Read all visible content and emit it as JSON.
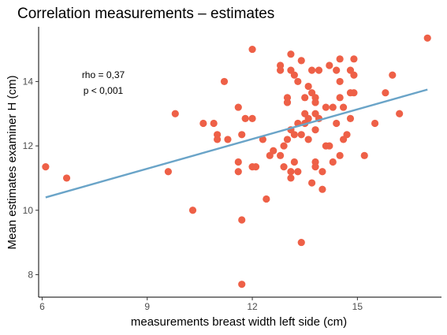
{
  "chart_data": {
    "type": "scatter",
    "title": "Correlation measurements – estimates",
    "xlabel": "measurements breast width left side (cm)",
    "ylabel": "Mean estimates examiner H (cm)",
    "xlim": [
      5.9,
      17.4
    ],
    "ylim": [
      7.3,
      15.7
    ],
    "xticks": [
      6,
      9,
      12,
      15
    ],
    "yticks": [
      8,
      10,
      12,
      14
    ],
    "grid": false,
    "point_color": "#ee6047",
    "line_color": "#6aa4c8",
    "annotations": [
      "rho = 0,37",
      "p < 0,001"
    ],
    "trend_line": {
      "x": [
        6.1,
        17.0
      ],
      "y": [
        10.4,
        13.75
      ]
    },
    "points": [
      {
        "x": 6.1,
        "y": 11.35
      },
      {
        "x": 6.7,
        "y": 11.0
      },
      {
        "x": 9.6,
        "y": 11.2
      },
      {
        "x": 9.8,
        "y": 13.0
      },
      {
        "x": 10.3,
        "y": 10.0
      },
      {
        "x": 10.6,
        "y": 12.7
      },
      {
        "x": 10.9,
        "y": 12.7
      },
      {
        "x": 11.0,
        "y": 12.35
      },
      {
        "x": 11.0,
        "y": 12.2
      },
      {
        "x": 11.2,
        "y": 14.0
      },
      {
        "x": 11.3,
        "y": 12.2
      },
      {
        "x": 11.6,
        "y": 13.2
      },
      {
        "x": 11.6,
        "y": 11.5
      },
      {
        "x": 11.6,
        "y": 11.2
      },
      {
        "x": 11.7,
        "y": 12.35
      },
      {
        "x": 11.7,
        "y": 9.7
      },
      {
        "x": 11.7,
        "y": 7.7
      },
      {
        "x": 11.8,
        "y": 12.85
      },
      {
        "x": 12.0,
        "y": 15.0
      },
      {
        "x": 12.0,
        "y": 12.85
      },
      {
        "x": 12.0,
        "y": 11.35
      },
      {
        "x": 12.1,
        "y": 11.35
      },
      {
        "x": 12.3,
        "y": 12.2
      },
      {
        "x": 12.4,
        "y": 10.35
      },
      {
        "x": 12.5,
        "y": 11.7
      },
      {
        "x": 12.6,
        "y": 11.85
      },
      {
        "x": 12.8,
        "y": 14.5
      },
      {
        "x": 12.8,
        "y": 14.35
      },
      {
        "x": 12.8,
        "y": 11.7
      },
      {
        "x": 12.9,
        "y": 12.0
      },
      {
        "x": 12.9,
        "y": 11.35
      },
      {
        "x": 13.0,
        "y": 13.5
      },
      {
        "x": 13.0,
        "y": 13.35
      },
      {
        "x": 13.0,
        "y": 12.2
      },
      {
        "x": 13.1,
        "y": 14.85
      },
      {
        "x": 13.1,
        "y": 14.35
      },
      {
        "x": 13.1,
        "y": 12.5
      },
      {
        "x": 13.1,
        "y": 11.2
      },
      {
        "x": 13.1,
        "y": 11.0
      },
      {
        "x": 13.2,
        "y": 14.2
      },
      {
        "x": 13.2,
        "y": 12.35
      },
      {
        "x": 13.2,
        "y": 11.5
      },
      {
        "x": 13.3,
        "y": 14.0
      },
      {
        "x": 13.3,
        "y": 12.7
      },
      {
        "x": 13.3,
        "y": 11.2
      },
      {
        "x": 13.4,
        "y": 14.65
      },
      {
        "x": 13.4,
        "y": 12.35
      },
      {
        "x": 13.4,
        "y": 9.0
      },
      {
        "x": 13.5,
        "y": 13.5
      },
      {
        "x": 13.5,
        "y": 13.0
      },
      {
        "x": 13.5,
        "y": 12.7
      },
      {
        "x": 13.6,
        "y": 13.85
      },
      {
        "x": 13.6,
        "y": 12.85
      },
      {
        "x": 13.6,
        "y": 12.2
      },
      {
        "x": 13.7,
        "y": 14.35
      },
      {
        "x": 13.7,
        "y": 13.65
      },
      {
        "x": 13.7,
        "y": 10.85
      },
      {
        "x": 13.8,
        "y": 13.5
      },
      {
        "x": 13.8,
        "y": 13.35
      },
      {
        "x": 13.8,
        "y": 13.0
      },
      {
        "x": 13.8,
        "y": 12.5
      },
      {
        "x": 13.8,
        "y": 11.5
      },
      {
        "x": 13.8,
        "y": 11.35
      },
      {
        "x": 13.9,
        "y": 14.35
      },
      {
        "x": 13.9,
        "y": 12.85
      },
      {
        "x": 14.0,
        "y": 11.2
      },
      {
        "x": 14.0,
        "y": 10.65
      },
      {
        "x": 14.1,
        "y": 13.2
      },
      {
        "x": 14.1,
        "y": 12.0
      },
      {
        "x": 14.2,
        "y": 14.5
      },
      {
        "x": 14.2,
        "y": 12.0
      },
      {
        "x": 14.3,
        "y": 13.2
      },
      {
        "x": 14.3,
        "y": 11.5
      },
      {
        "x": 14.4,
        "y": 14.35
      },
      {
        "x": 14.4,
        "y": 12.7
      },
      {
        "x": 14.5,
        "y": 14.7
      },
      {
        "x": 14.5,
        "y": 14.0
      },
      {
        "x": 14.5,
        "y": 13.5
      },
      {
        "x": 14.5,
        "y": 11.7
      },
      {
        "x": 14.6,
        "y": 13.2
      },
      {
        "x": 14.6,
        "y": 12.2
      },
      {
        "x": 14.7,
        "y": 12.35
      },
      {
        "x": 14.8,
        "y": 14.35
      },
      {
        "x": 14.8,
        "y": 13.65
      },
      {
        "x": 14.8,
        "y": 12.85
      },
      {
        "x": 14.9,
        "y": 14.7
      },
      {
        "x": 14.9,
        "y": 14.2
      },
      {
        "x": 14.9,
        "y": 13.65
      },
      {
        "x": 15.2,
        "y": 11.7
      },
      {
        "x": 15.5,
        "y": 12.7
      },
      {
        "x": 15.8,
        "y": 13.65
      },
      {
        "x": 16.0,
        "y": 14.2
      },
      {
        "x": 16.2,
        "y": 13.0
      },
      {
        "x": 17.0,
        "y": 15.35
      }
    ]
  }
}
